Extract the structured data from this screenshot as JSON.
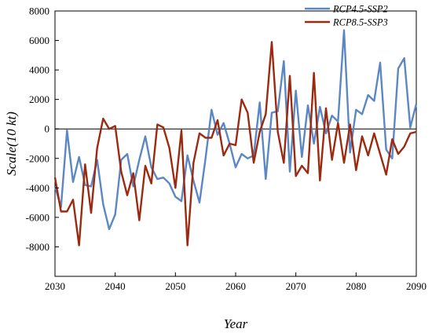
{
  "chart_data": {
    "type": "line",
    "xlabel": "Year",
    "ylabel": "Scale(10 kt)",
    "xlim": [
      2030,
      2090
    ],
    "ylim": [
      -10000,
      8000
    ],
    "xticks": [
      2030,
      2040,
      2050,
      2060,
      2070,
      2080,
      2090
    ],
    "yticks": [
      -8000,
      -6000,
      -4000,
      -2000,
      0,
      2000,
      4000,
      6000,
      8000
    ],
    "grid": false,
    "zero_line": true,
    "legend_position": "top-right",
    "x": [
      2030,
      2031,
      2032,
      2033,
      2034,
      2035,
      2036,
      2037,
      2038,
      2039,
      2040,
      2041,
      2042,
      2043,
      2044,
      2045,
      2046,
      2047,
      2048,
      2049,
      2050,
      2051,
      2052,
      2053,
      2054,
      2055,
      2056,
      2057,
      2058,
      2059,
      2060,
      2061,
      2062,
      2063,
      2064,
      2065,
      2066,
      2067,
      2068,
      2069,
      2070,
      2071,
      2072,
      2073,
      2074,
      2075,
      2076,
      2077,
      2078,
      2079,
      2080,
      2081,
      2082,
      2083,
      2084,
      2085,
      2086,
      2087,
      2088,
      2089,
      2090
    ],
    "series": [
      {
        "name": "RCP4.5-SSP2",
        "color": "#5b87c5",
        "values": [
          -3900,
          -5300,
          -100,
          -3600,
          -1900,
          -3800,
          -3900,
          -2100,
          -5100,
          -6800,
          -5800,
          -2100,
          -1700,
          -3900,
          -2100,
          -500,
          -2600,
          -3400,
          -3300,
          -3700,
          -4600,
          -4900,
          -1800,
          -3500,
          -5000,
          -2000,
          1300,
          -400,
          400,
          -1000,
          -2600,
          -1700,
          -2000,
          -1800,
          1800,
          -3400,
          1100,
          1200,
          4600,
          -2900,
          2600,
          -1900,
          1600,
          -1000,
          1500,
          -300,
          900,
          500,
          6700,
          -1600,
          1300,
          1000,
          2300,
          1900,
          4500,
          -1400,
          -2000,
          4100,
          4800,
          100,
          1700
        ]
      },
      {
        "name": "RCP8.5-SSP3",
        "color": "#9b2a10",
        "values": [
          -3300,
          -5600,
          -5600,
          -4800,
          -7900,
          -2400,
          -5700,
          -1300,
          700,
          0,
          200,
          -2900,
          -4500,
          -3000,
          -6200,
          -2500,
          -3700,
          300,
          100,
          -1300,
          -4000,
          -100,
          -7900,
          -2300,
          -300,
          -600,
          -600,
          600,
          -1800,
          -1000,
          -1100,
          2000,
          1100,
          -2300,
          -200,
          1000,
          5900,
          -200,
          -2300,
          3600,
          -3200,
          -2500,
          -3000,
          3800,
          -3500,
          1400,
          -2100,
          400,
          -2300,
          300,
          -2800,
          -500,
          -1800,
          -300,
          -1700,
          -3100,
          -700,
          -1700,
          -1200,
          -300,
          -200
        ]
      }
    ]
  }
}
